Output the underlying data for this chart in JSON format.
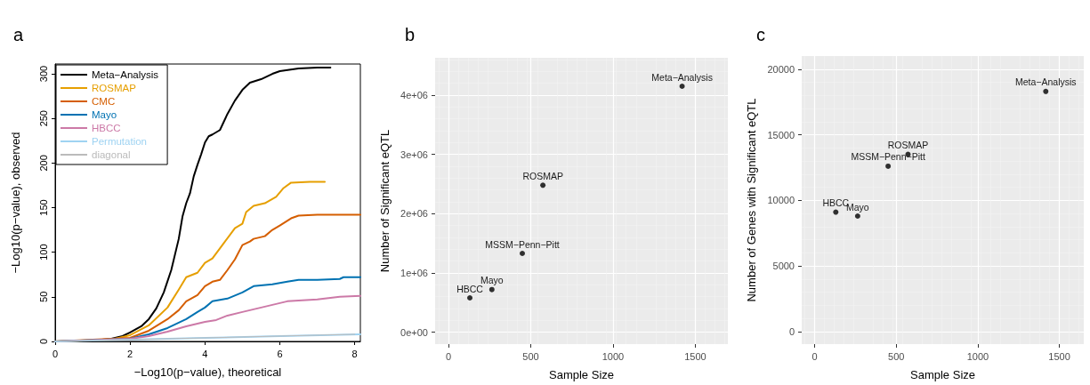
{
  "chart_data": [
    {
      "type": "line",
      "title": "a",
      "xlabel": "−Log10(p−value), theoretical",
      "ylabel": "−Log10(p−value), observed",
      "xlim": [
        0,
        8.15
      ],
      "ylim": [
        0,
        311
      ],
      "xticks": [
        0,
        2,
        4,
        6,
        8
      ],
      "yticks": [
        0,
        50,
        100,
        150,
        200,
        250,
        300
      ],
      "grid": false,
      "legend": "top left",
      "marker": "none",
      "line_style": "solid",
      "series": [
        {
          "name": "Meta−Analysis",
          "color": "#000000",
          "x": [
            0,
            1,
            1.5,
            1.8,
            2,
            2.3,
            2.5,
            2.7,
            2.9,
            3.1,
            3.3,
            3.4,
            3.5,
            3.6,
            3.7,
            3.8,
            3.9,
            4.0,
            4.1,
            4.2,
            4.4,
            4.6,
            4.8,
            5.0,
            5.2,
            5.5,
            5.8,
            6.0,
            6.5,
            7.0,
            7.35
          ],
          "values": [
            0,
            1,
            3,
            6,
            10,
            17,
            25,
            37,
            55,
            80,
            115,
            140,
            155,
            166,
            185,
            198,
            210,
            223,
            230,
            232,
            237,
            255,
            270,
            282,
            290,
            294,
            300,
            303,
            306,
            307,
            307
          ]
        },
        {
          "name": "ROSMAP",
          "color": "#e69f00",
          "x": [
            0,
            1.5,
            2,
            2.5,
            3,
            3.3,
            3.5,
            3.8,
            4.0,
            4.2,
            4.5,
            4.8,
            5.0,
            5.1,
            5.3,
            5.6,
            5.9,
            6.1,
            6.3,
            6.8,
            7.2
          ],
          "values": [
            0,
            2,
            7,
            18,
            38,
            58,
            72,
            77,
            88,
            93,
            110,
            127,
            132,
            145,
            152,
            155,
            162,
            172,
            178,
            179,
            179
          ]
        },
        {
          "name": "CMC",
          "color": "#d55e00",
          "x": [
            0,
            2,
            2.5,
            3,
            3.3,
            3.5,
            3.8,
            4,
            4.2,
            4.4,
            4.6,
            4.8,
            5.0,
            5.2,
            5.3,
            5.6,
            5.8,
            6.0,
            6.3,
            6.5,
            7,
            8.15
          ],
          "values": [
            0,
            4,
            12,
            25,
            35,
            45,
            52,
            62,
            67,
            69,
            80,
            92,
            108,
            112,
            115,
            118,
            125,
            130,
            138,
            141,
            142,
            142
          ]
        },
        {
          "name": "Mayo",
          "color": "#0072b2",
          "x": [
            0,
            2,
            2.5,
            3,
            3.5,
            3.8,
            4,
            4.2,
            4.6,
            5.0,
            5.3,
            5.8,
            6.2,
            6.5,
            7,
            7.6,
            7.7,
            8.15
          ],
          "values": [
            0,
            3,
            8,
            15,
            25,
            33,
            38,
            45,
            48,
            55,
            62,
            64,
            67,
            69,
            69,
            70,
            72,
            72
          ]
        },
        {
          "name": "HBCC",
          "color": "#cc79a7",
          "x": [
            0,
            2,
            2.5,
            3,
            3.5,
            4,
            4.3,
            4.6,
            5.0,
            5.5,
            6.0,
            6.2,
            7,
            7.6,
            8.15
          ],
          "values": [
            0,
            3,
            6,
            11,
            17,
            22,
            24,
            29,
            33,
            38,
            43,
            45,
            47,
            50,
            51
          ]
        },
        {
          "name": "Permutation",
          "color": "#9fd3f2",
          "x": [
            0,
            2,
            4,
            6,
            8.15
          ],
          "values": [
            0,
            2,
            4,
            6,
            8
          ]
        },
        {
          "name": "diagonal",
          "color": "#bbbbbb",
          "x": [
            0,
            8
          ],
          "values": [
            0,
            8
          ]
        }
      ]
    },
    {
      "type": "scatter",
      "title": "b",
      "xlabel": "Sample Size",
      "ylabel": "Number of Significant eQTL",
      "xlim": [
        -81,
        1698
      ],
      "ylim": [
        -200000,
        4630000
      ],
      "xticks": [
        0,
        500,
        1000,
        1500
      ],
      "yticks": [
        {
          "value": 0,
          "label": "0e+00"
        },
        {
          "value": 1000000,
          "label": "1e+06"
        },
        {
          "value": 2000000,
          "label": "2e+06"
        },
        {
          "value": 3000000,
          "label": "3e+06"
        },
        {
          "value": 4000000,
          "label": "4e+06"
        }
      ],
      "grid": true,
      "marker": "circle",
      "series": [
        {
          "color": "#000000",
          "x": [
            130,
            264,
            449,
            574,
            1420
          ],
          "values": [
            580000,
            720000,
            1330000,
            2480000,
            4150000
          ]
        }
      ],
      "annotations": [
        {
          "text": "HBCC",
          "x": 130,
          "y": 580000
        },
        {
          "text": "Mayo",
          "x": 264,
          "y": 720000
        },
        {
          "text": "MSSM−Penn−Pitt",
          "x": 449,
          "y": 1330000
        },
        {
          "text": "ROSMAP",
          "x": 574,
          "y": 2480000
        },
        {
          "text": "Meta−Analysis",
          "x": 1420,
          "y": 4150000
        }
      ]
    },
    {
      "type": "scatter",
      "title": "c",
      "xlabel": "Sample Size",
      "ylabel": "Number of Genes with Significant eQTL",
      "xlim": [
        -80,
        1650
      ],
      "ylim": [
        -960,
        21000
      ],
      "xticks": [
        0,
        500,
        1000,
        1500
      ],
      "yticks": [
        0,
        5000,
        10000,
        15000,
        20000
      ],
      "grid": true,
      "marker": "circle",
      "series": [
        {
          "color": "#000000",
          "x": [
            129,
            263,
            450,
            572,
            1417
          ],
          "values": [
            9100,
            8800,
            12600,
            13500,
            18300
          ]
        }
      ],
      "annotations": [
        {
          "text": "HBCC",
          "x": 129,
          "y": 9100
        },
        {
          "text": "Mayo",
          "x": 263,
          "y": 8800
        },
        {
          "text": "MSSM−Penn−Pitt",
          "x": 450,
          "y": 12600
        },
        {
          "text": "ROSMAP",
          "x": 572,
          "y": 13500
        },
        {
          "text": "Meta−Analysis",
          "x": 1417,
          "y": 18300
        }
      ]
    }
  ]
}
